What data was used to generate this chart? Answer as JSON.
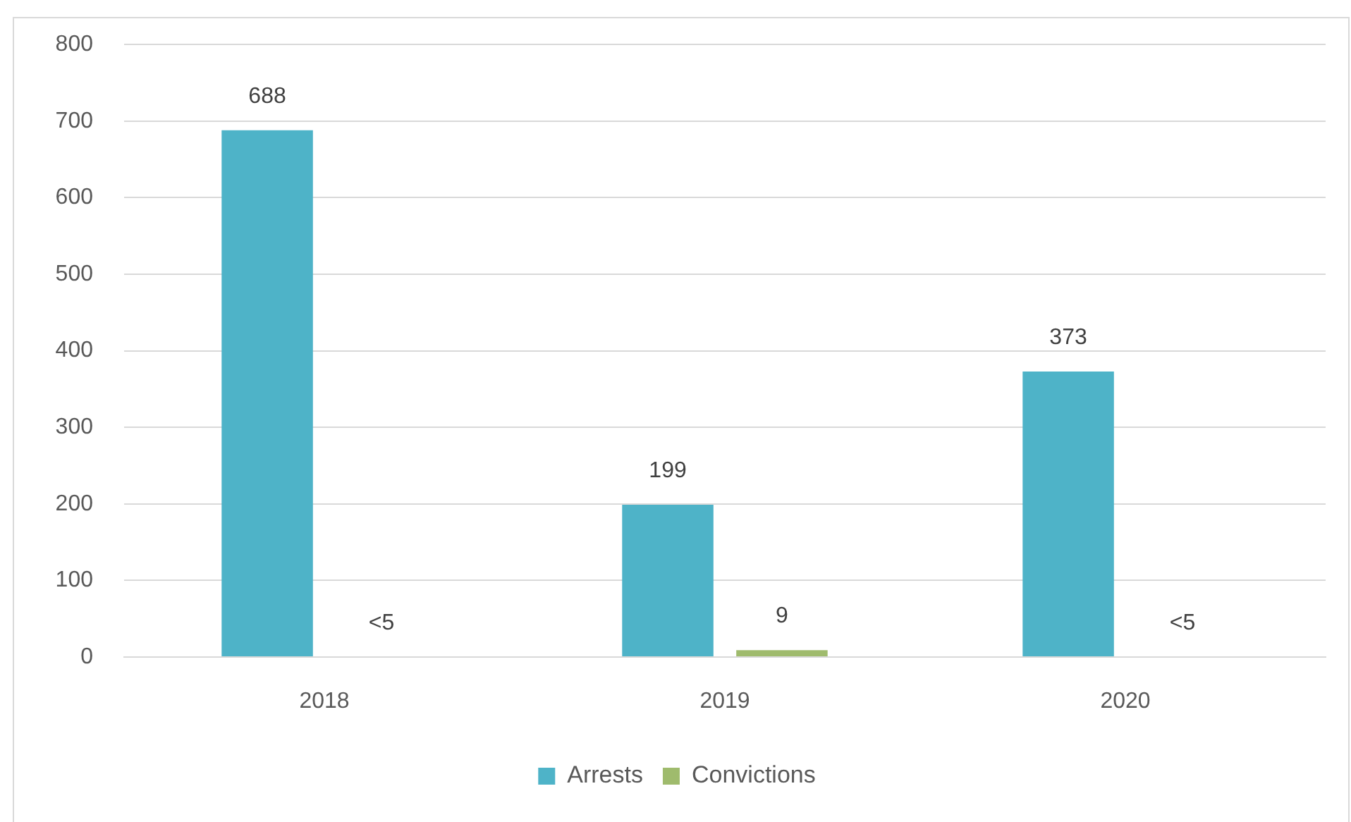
{
  "chart_data": {
    "type": "bar",
    "categories": [
      "2018",
      "2019",
      "2020"
    ],
    "series": [
      {
        "name": "Arrests",
        "color": "#4eb3c8",
        "values": [
          688,
          199,
          373
        ],
        "value_labels": [
          "688",
          "199",
          "373"
        ]
      },
      {
        "name": "Convictions",
        "color": "#9fbb6d",
        "values": [
          null,
          9,
          null
        ],
        "value_labels": [
          "<5",
          "9",
          "<5"
        ]
      }
    ],
    "ylim": [
      0,
      800
    ],
    "yticks": [
      0,
      100,
      200,
      300,
      400,
      500,
      600,
      700,
      800
    ],
    "grid": "y",
    "legend": "bottom"
  }
}
